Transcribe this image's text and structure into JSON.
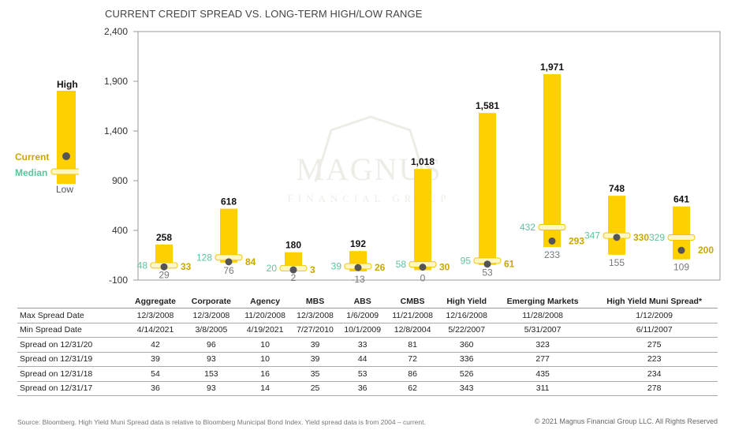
{
  "chart_data": {
    "type": "range_bar",
    "title": "CURRENT CREDIT SPREAD VS. LONG-TERM HIGH/LOW RANGE",
    "ylim": [
      -100,
      2400
    ],
    "yticks": [
      -100,
      400,
      900,
      1400,
      1900,
      2400
    ],
    "ytick_labels": [
      "-100",
      "400",
      "900",
      "1,400",
      "1,900",
      "2,400"
    ],
    "grid": false,
    "categories": [
      "Aggregate",
      "Corporate",
      "Agency",
      "MBS",
      "ABS",
      "CMBS",
      "High Yield",
      "Emerging Markets",
      "High Yield Muni Spread*"
    ],
    "high": [
      258,
      618,
      180,
      192,
      1018,
      1581,
      1971,
      748,
      641
    ],
    "low": [
      29,
      76,
      2,
      -13,
      0,
      53,
      233,
      155,
      109
    ],
    "median": [
      48,
      128,
      20,
      39,
      58,
      95,
      432,
      347,
      329
    ],
    "current": [
      33,
      84,
      3,
      26,
      30,
      61,
      293,
      330,
      200
    ],
    "high_labels": [
      "258",
      "618",
      "180",
      "192",
      "1,018",
      "1,581",
      "1,971",
      "748",
      "641"
    ],
    "low_labels": [
      "29",
      "76",
      "2",
      "-13",
      "0",
      "53",
      "233",
      "155",
      "109"
    ],
    "median_labels": [
      "48",
      "128",
      "20",
      "39",
      "58",
      "95",
      "432",
      "347",
      "329"
    ],
    "current_labels": [
      "33",
      "84",
      "3",
      "26",
      "30",
      "61",
      "293",
      "330",
      "200"
    ],
    "legend": {
      "high": "High",
      "current": "Current",
      "median": "Median",
      "low": "Low"
    },
    "colors": {
      "bar": "#FFD000",
      "median": "#5DC49A",
      "current": "#C9A800",
      "low": "#777777",
      "dot": "#555555",
      "axis": "#999999"
    }
  },
  "table": {
    "columns": [
      "Aggregate",
      "Corporate",
      "Agency",
      "MBS",
      "ABS",
      "CMBS",
      "High Yield",
      "Emerging Markets",
      "High Yield Muni Spread*"
    ],
    "rows": [
      {
        "label": "Max Spread Date",
        "values": [
          "12/3/2008",
          "12/3/2008",
          "11/20/2008",
          "12/3/2008",
          "1/6/2009",
          "11/21/2008",
          "12/16/2008",
          "11/28/2008",
          "1/12/2009"
        ]
      },
      {
        "label": "Min Spread Date",
        "values": [
          "4/14/2021",
          "3/8/2005",
          "4/19/2021",
          "7/27/2010",
          "10/1/2009",
          "12/8/2004",
          "5/22/2007",
          "5/31/2007",
          "6/11/2007"
        ]
      },
      {
        "label": "Spread on 12/31/20",
        "values": [
          "42",
          "96",
          "10",
          "39",
          "33",
          "81",
          "360",
          "323",
          "275"
        ]
      },
      {
        "label": "Spread on 12/31/19",
        "values": [
          "39",
          "93",
          "10",
          "39",
          "44",
          "72",
          "336",
          "277",
          "223"
        ]
      },
      {
        "label": "Spread on 12/31/18",
        "values": [
          "54",
          "153",
          "16",
          "35",
          "53",
          "86",
          "526",
          "435",
          "234"
        ]
      },
      {
        "label": "Spread on 12/31/17",
        "values": [
          "36",
          "93",
          "14",
          "25",
          "36",
          "62",
          "343",
          "311",
          "278"
        ]
      }
    ]
  },
  "watermark": {
    "main": "MAGNUS",
    "sub": "FINANCIAL GROUP"
  },
  "footer": {
    "source": "Source: Bloomberg. High Yield Muni Spread data is relative to Bloomberg Municipal Bond Index. Yield spread data is from 2004 – current.",
    "copyright": "© 2021 Magnus Financial Group LLC. All Rights Reserved"
  }
}
